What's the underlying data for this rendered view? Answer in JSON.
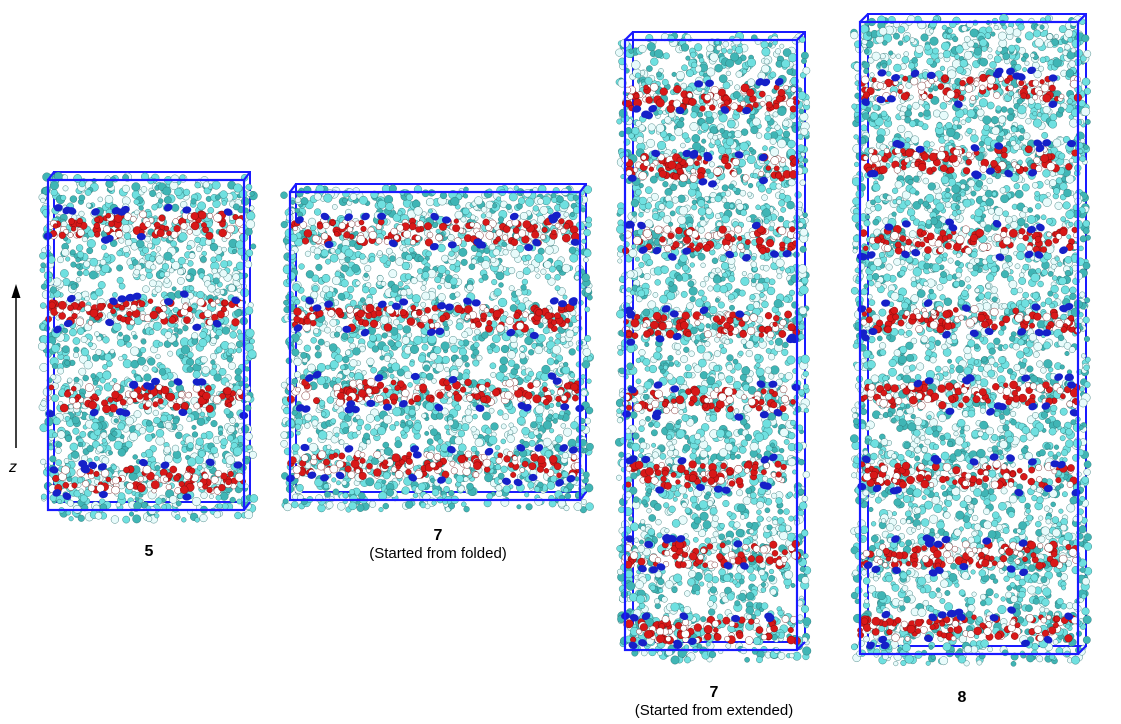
{
  "axis": {
    "label": "z"
  },
  "panels": [
    {
      "id": "5",
      "title": "5",
      "note": ""
    },
    {
      "id": "7-folded",
      "title": "7",
      "note": "(Started from folded)"
    },
    {
      "id": "7-extended",
      "title": "7",
      "note": "(Started from extended)"
    },
    {
      "id": "8",
      "title": "8",
      "note": ""
    }
  ],
  "colors": {
    "box": "#1a1aff",
    "carbon": "#6fe0e0",
    "carbon_dark": "#3fb5b5",
    "hydrogen": "#e8fbfb",
    "oxygen": "#d81818",
    "oxygen_light": "#ffffff",
    "nitrogen": "#1520c8"
  }
}
